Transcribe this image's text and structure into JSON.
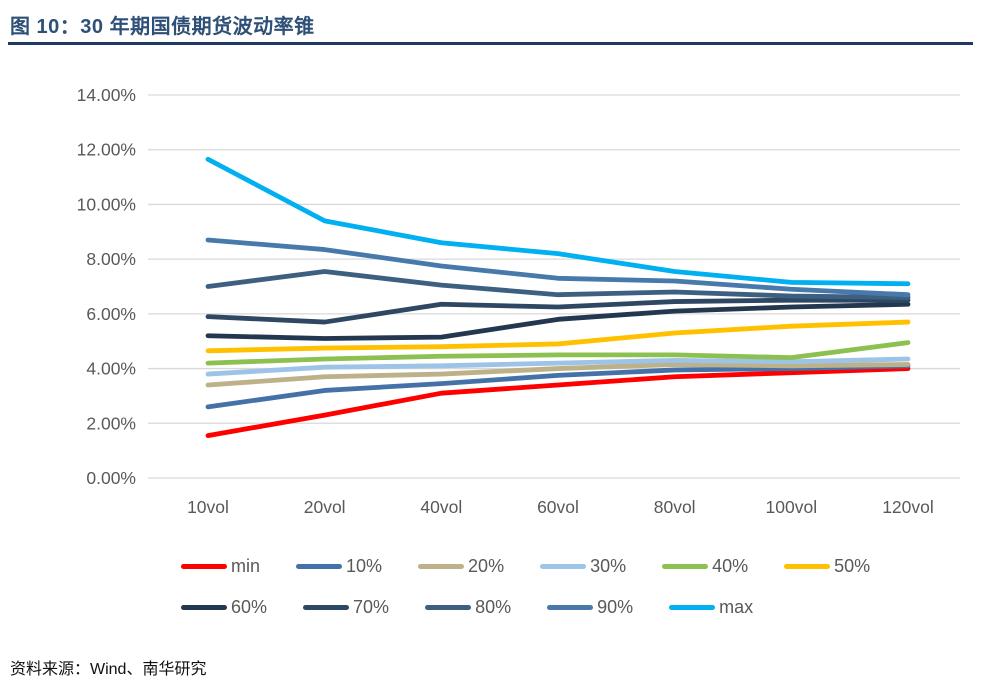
{
  "header": {
    "title": "图 10：30 年期国债期货波动率锥"
  },
  "chart_data": {
    "type": "line",
    "title": "图 10：30 年期国债期货波动率锥",
    "xlabel": "",
    "ylabel": "",
    "categories": [
      "10vol",
      "20vol",
      "40vol",
      "60vol",
      "80vol",
      "100vol",
      "120vol"
    ],
    "series": [
      {
        "name": "min",
        "color": "#FF0000",
        "values": [
          1.55,
          2.3,
          3.1,
          3.4,
          3.7,
          3.85,
          4.0
        ]
      },
      {
        "name": "10%",
        "color": "#4472A8",
        "values": [
          2.6,
          3.2,
          3.45,
          3.75,
          3.95,
          4.0,
          4.1
        ]
      },
      {
        "name": "20%",
        "color": "#BDB18A",
        "values": [
          3.4,
          3.7,
          3.8,
          4.0,
          4.15,
          4.1,
          4.15
        ]
      },
      {
        "name": "30%",
        "color": "#9DC3E6",
        "values": [
          3.8,
          4.05,
          4.1,
          4.2,
          4.3,
          4.25,
          4.35
        ]
      },
      {
        "name": "40%",
        "color": "#8CC152",
        "values": [
          4.2,
          4.35,
          4.45,
          4.5,
          4.5,
          4.4,
          4.95
        ]
      },
      {
        "name": "50%",
        "color": "#FFC000",
        "values": [
          4.65,
          4.75,
          4.8,
          4.9,
          5.3,
          5.55,
          5.7
        ]
      },
      {
        "name": "60%",
        "color": "#233850",
        "values": [
          5.2,
          5.1,
          5.15,
          5.8,
          6.1,
          6.25,
          6.35
        ]
      },
      {
        "name": "70%",
        "color": "#2E4763",
        "values": [
          5.9,
          5.7,
          6.35,
          6.25,
          6.45,
          6.5,
          6.5
        ]
      },
      {
        "name": "80%",
        "color": "#3D6080",
        "values": [
          7.0,
          7.55,
          7.05,
          6.7,
          6.8,
          6.65,
          6.6
        ]
      },
      {
        "name": "90%",
        "color": "#4779AB",
        "values": [
          8.7,
          8.35,
          7.75,
          7.3,
          7.2,
          6.9,
          6.7
        ]
      },
      {
        "name": "max",
        "color": "#00B0F0",
        "values": [
          11.65,
          9.4,
          8.6,
          8.2,
          7.55,
          7.15,
          7.1
        ]
      }
    ],
    "y_ticks": [
      "0.00%",
      "2.00%",
      "4.00%",
      "6.00%",
      "8.00%",
      "10.00%",
      "12.00%",
      "14.00%"
    ],
    "ylim": [
      0,
      14
    ],
    "grid": "horizontal",
    "legend_position": "bottom",
    "legend_rows": [
      [
        "min",
        "10%",
        "20%",
        "30%",
        "40%",
        "50%"
      ],
      [
        "60%",
        "70%",
        "80%",
        "90%",
        "max"
      ]
    ]
  },
  "footer": {
    "source": "资料来源：Wind、南华研究"
  },
  "colors": {
    "title_text": "#2E5077",
    "title_rule": "#1F3864",
    "axis_text": "#595959",
    "gridline": "#D9D9D9",
    "background": "#FFFFFF"
  }
}
